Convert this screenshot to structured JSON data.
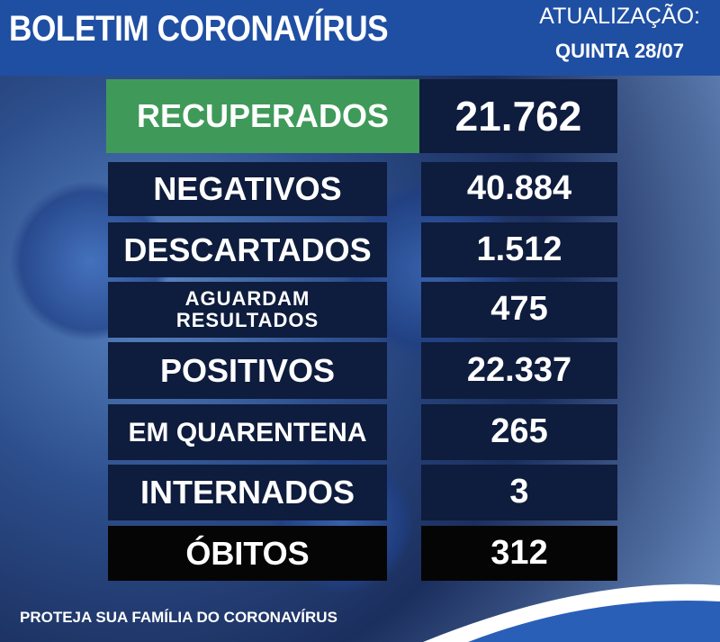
{
  "header": {
    "title": "BOLETIM CORONAVÍRUS",
    "update_label": "ATUALIZAÇÃO:",
    "update_date": "QUINTA 28/07"
  },
  "rows": [
    {
      "label": "RECUPERADOS",
      "value": "21.762"
    },
    {
      "label": "NEGATIVOS",
      "value": "40.884"
    },
    {
      "label": "DESCARTADOS",
      "value": "1.512"
    },
    {
      "label": "AGUARDAM RESULTADOS",
      "value": "475"
    },
    {
      "label": "POSITIVOS",
      "value": "22.337"
    },
    {
      "label": "EM QUARENTENA",
      "value": "265"
    },
    {
      "label": "INTERNADOS",
      "value": "3"
    },
    {
      "label": "ÓBITOS",
      "value": "312"
    }
  ],
  "footer": "PROTEJA SUA FAMÍLIA DO CORONAVÍRUS"
}
